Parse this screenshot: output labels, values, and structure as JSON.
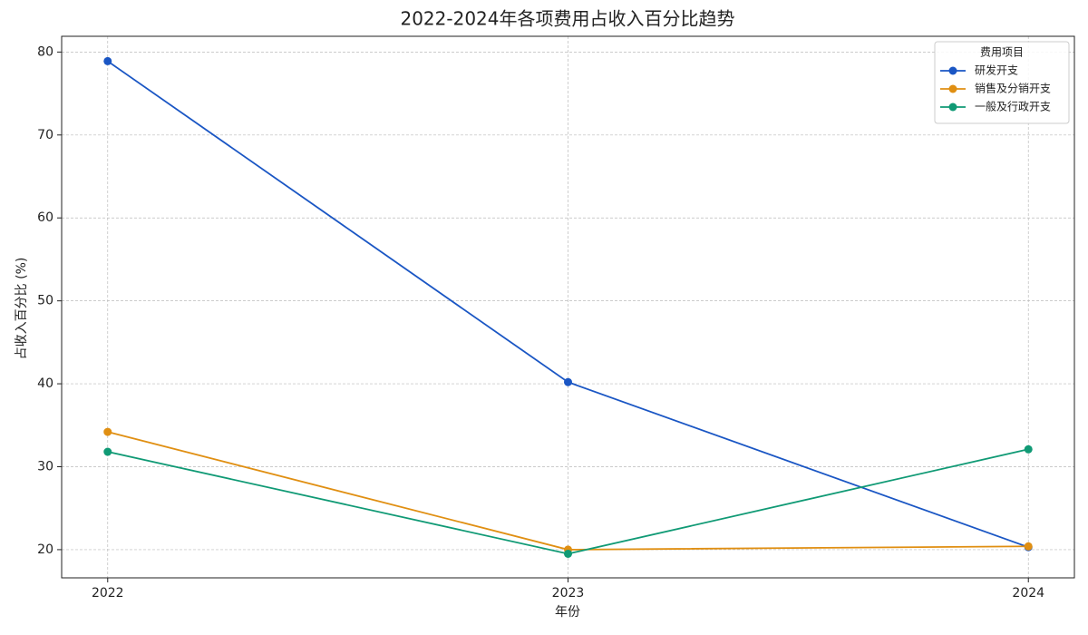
{
  "chart_data": {
    "type": "line",
    "title": "2022-2024年各项费用占收入百分比趋势",
    "x_label": "年份",
    "y_label": "占收入百分比 (%)",
    "x": [
      2022,
      2023,
      2024
    ],
    "series": [
      {
        "name": "研发开支",
        "color": "#1a56c4",
        "values": [
          78.9,
          40.2,
          20.3
        ]
      },
      {
        "name": "销售及分销开支",
        "color": "#e08f12",
        "values": [
          34.2,
          20.0,
          20.4
        ]
      },
      {
        "name": "一般及行政开支",
        "color": "#109a75",
        "values": [
          31.8,
          19.5,
          32.1
        ]
      }
    ],
    "xlim": [
      2021.9,
      2024.1
    ],
    "xticks": [
      2022,
      2023,
      2024
    ],
    "ylim": [
      16.6,
      81.9
    ],
    "yticks": [
      20,
      30,
      40,
      50,
      60,
      70,
      80
    ],
    "grid": true,
    "legend_title": "费用项目",
    "legend_position": "upper right"
  }
}
